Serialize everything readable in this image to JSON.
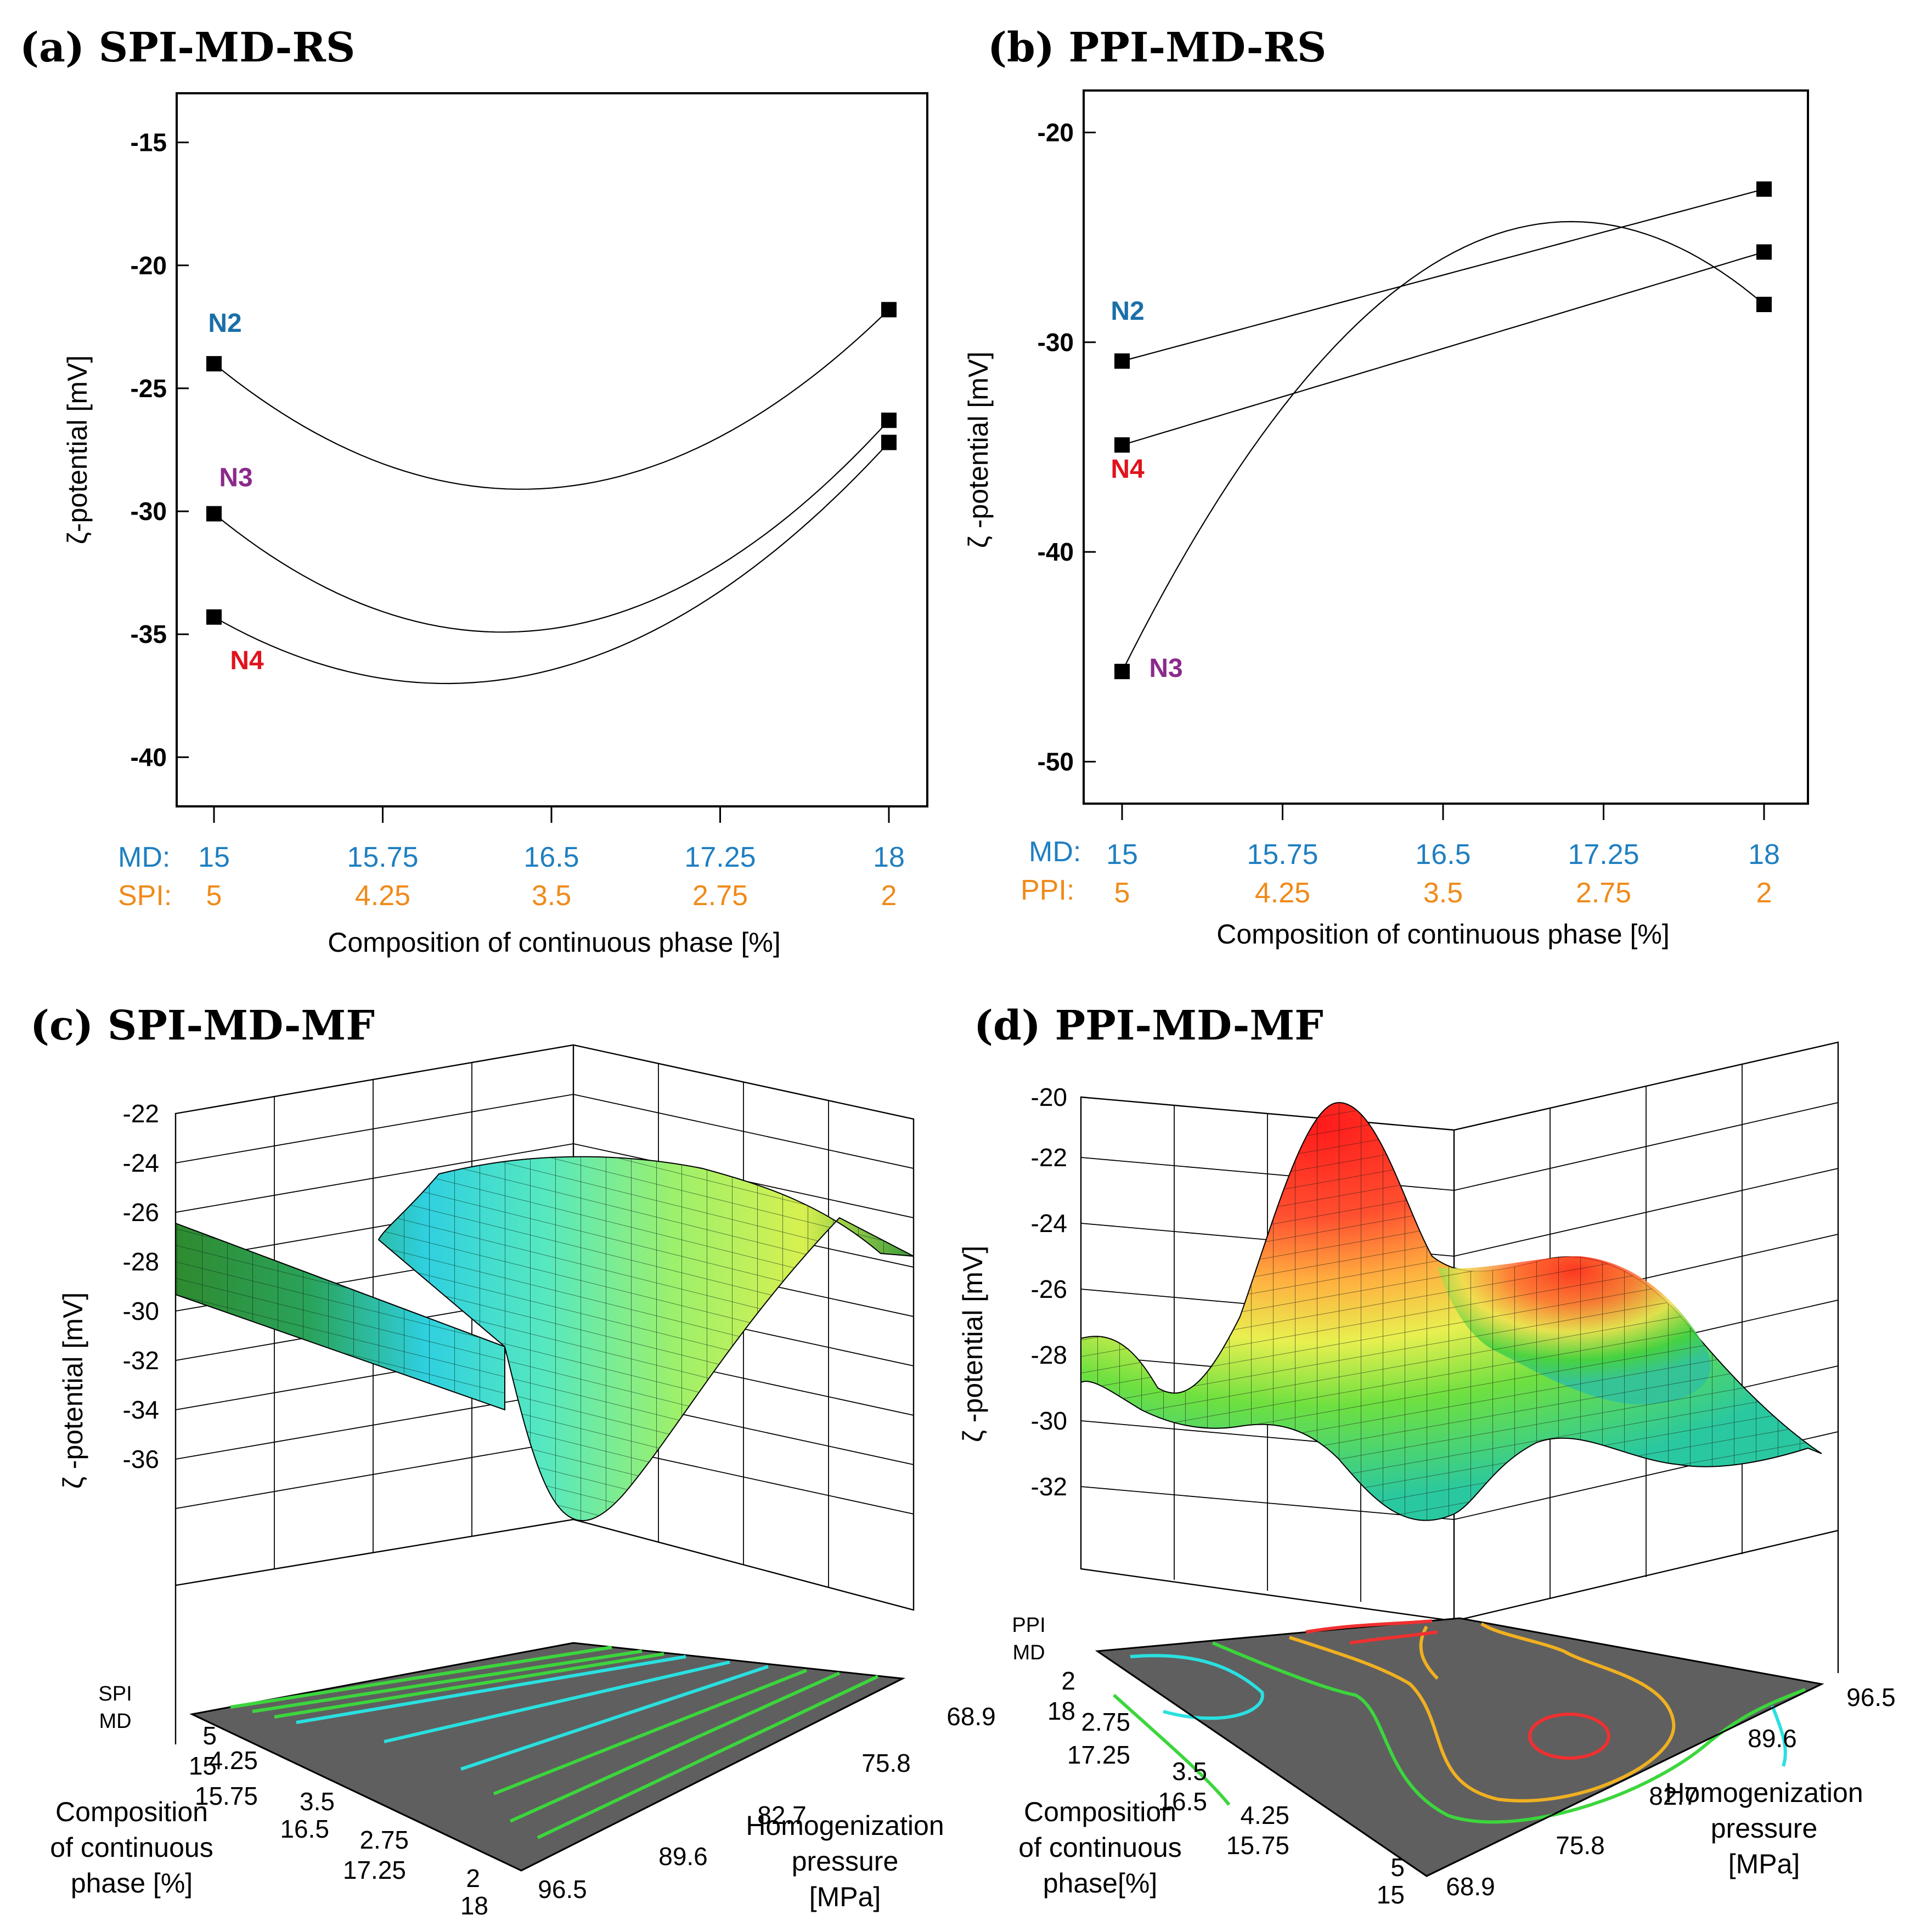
{
  "chart_data": [
    {
      "id": "a",
      "type": "line",
      "panel_title": "(a) SPI-MD-RS",
      "ylabel": "ζ-potential  [mV]",
      "xlabel": "Composition of continuous phase [%]",
      "ylim": [
        -42,
        -13
      ],
      "yticks": [
        -15,
        -20,
        -25,
        -30,
        -35,
        -40
      ],
      "md_prefix": "MD:",
      "pi_prefix": "SPI:",
      "md_ticks": [
        "15",
        "15.75",
        "16.5",
        "17.25",
        "18"
      ],
      "pi_ticks": [
        "5",
        "4.25",
        "3.5",
        "2.75",
        "2"
      ],
      "series": [
        {
          "name": "N2",
          "color": "#1a6fa8",
          "x": [
            15,
            18
          ],
          "y": [
            -24.0,
            -21.8
          ],
          "min_x": 16.4,
          "min_y": -29.1
        },
        {
          "name": "N3",
          "color": "#8b2a8b",
          "x": [
            15,
            18
          ],
          "y": [
            -30.1,
            -26.3
          ],
          "min_x": 16.35,
          "min_y": -34.9
        },
        {
          "name": "N4",
          "color": "#e0141c",
          "x": [
            15,
            18
          ],
          "y": [
            -34.3,
            -27.2
          ],
          "min_x": 16.0,
          "min_y": -37.0
        }
      ]
    },
    {
      "id": "b",
      "type": "line",
      "panel_title": "(b) PPI-MD-RS",
      "ylabel": "ζ -potential [mV]",
      "xlabel": "Composition of continuous phase [%]",
      "ylim": [
        -52,
        -18
      ],
      "yticks": [
        -20,
        -30,
        -40,
        -50
      ],
      "md_prefix": "MD:",
      "pi_prefix": "PPI:",
      "md_ticks": [
        "15",
        "15.75",
        "16.5",
        "17.25",
        "18"
      ],
      "pi_ticks": [
        "5",
        "4.25",
        "3.5",
        "2.75",
        "2"
      ],
      "series": [
        {
          "name": "N2",
          "color": "#1a6fa8",
          "x": [
            15,
            18
          ],
          "y": [
            -30.9,
            -22.7
          ]
        },
        {
          "name": "N4",
          "color": "#e0141c",
          "x": [
            15,
            18
          ],
          "y": [
            -34.9,
            -25.7
          ]
        },
        {
          "name": "N3",
          "color": "#8b2a8b",
          "x": [
            15,
            18
          ],
          "y": [
            -45.7,
            -28.2
          ],
          "peak_x": 17.2,
          "peak_y": -24.3
        }
      ]
    },
    {
      "id": "c",
      "type": "surface",
      "panel_title": "(c) SPI-MD-MF",
      "zlabel": "ζ -potential [mV]",
      "zticks": [
        "-22",
        "-24",
        "-26",
        "-28",
        "-30",
        "-32",
        "-34",
        "-36"
      ],
      "comp_label": [
        "Composition",
        "of continuous",
        "phase [%]"
      ],
      "comp_axis_heads": [
        "SPI",
        "MD"
      ],
      "comp_ticks_pi": [
        "5",
        "4.25",
        "3.5",
        "2.75",
        "2"
      ],
      "comp_ticks_md": [
        "15",
        "15.75",
        "16.5",
        "17.25",
        "18"
      ],
      "pressure_label": [
        "Homogenization",
        "pressure",
        "[MPa]"
      ],
      "pressure_ticks": [
        "96.5",
        "89.6",
        "82.7",
        "75.8",
        "68.9"
      ]
    },
    {
      "id": "d",
      "type": "surface",
      "panel_title": "(d) PPI-MD-MF",
      "zlabel": "ζ -potential [mV]",
      "zticks": [
        "-20",
        "-22",
        "-24",
        "-26",
        "-28",
        "-30",
        "-32"
      ],
      "comp_label": [
        "Composition",
        "of continuous",
        "phase[%]"
      ],
      "comp_axis_heads": [
        "PPI",
        "MD"
      ],
      "comp_ticks_pi": [
        "2",
        "2.75",
        "3.5",
        "4.25",
        "5"
      ],
      "comp_ticks_md": [
        "18",
        "17.25",
        "16.5",
        "15.75",
        "15"
      ],
      "pressure_label": [
        "Homogenization",
        "pressure",
        "[MPa]"
      ],
      "pressure_ticks": [
        "68.9",
        "75.8",
        "82.7",
        "89.6",
        "96.5"
      ]
    }
  ]
}
